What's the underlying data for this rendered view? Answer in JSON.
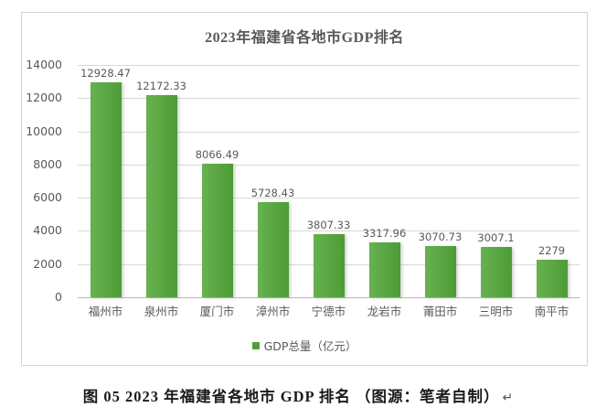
{
  "chart": {
    "title": "2023年福建省各地市GDP排名",
    "legend_label": "GDP总量（亿元）",
    "colors": {
      "bar_light": "#68b150",
      "bar_dark": "#4c9c36",
      "legend_marker": "#4f9f38",
      "gridline": "#d9d9d9",
      "axis_line": "#b8b8b8",
      "chart_text": "#595959",
      "chart_border": "#d3d3d3",
      "caption_text": "#1a1a1a"
    }
  },
  "chart_data": {
    "type": "bar",
    "title": "2023年福建省各地市GDP排名",
    "categories": [
      "福州市",
      "泉州市",
      "厦门市",
      "漳州市",
      "宁德市",
      "龙岩市",
      "莆田市",
      "三明市",
      "南平市"
    ],
    "values": [
      12928.47,
      12172.33,
      8066.49,
      5728.43,
      3807.33,
      3317.96,
      3070.73,
      3007.1,
      2279
    ],
    "value_labels": [
      "12928.47",
      "12172.33",
      "8066.49",
      "5728.43",
      "3807.33",
      "3317.96",
      "3070.73",
      "3007.1",
      "2279"
    ],
    "series_name": "GDP总量（亿元）",
    "xlabel": "",
    "ylabel": "",
    "ylim": [
      0,
      14000
    ],
    "ytick_interval": 2000,
    "ytick_labels": [
      "0",
      "2000",
      "4000",
      "6000",
      "8000",
      "10000",
      "12000",
      "14000"
    ],
    "grid": "horizontal",
    "legend_position": "bottom",
    "data_labels": true
  },
  "caption": {
    "text": "图 05 2023 年福建省各地市 GDP 排名 （图源：笔者自制）",
    "return_mark": "↵"
  }
}
